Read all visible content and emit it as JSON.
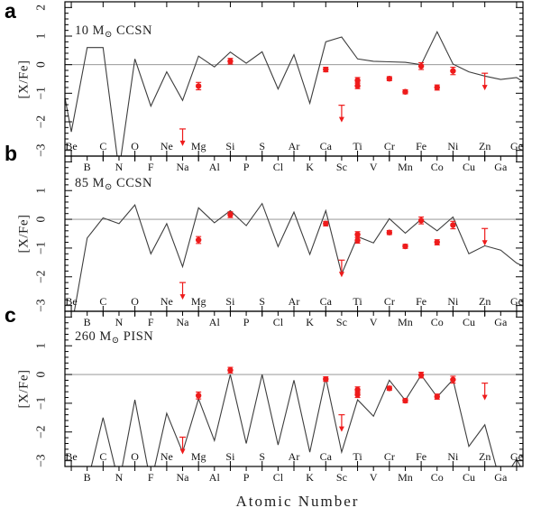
{
  "figure": {
    "xlabel": "Atomic Number",
    "ylabel": "[X/Fe]",
    "background": "#ffffff",
    "axis_color": "#000000",
    "model_line_color": "#3d3d3d",
    "zero_line_color": "#8a8a8a",
    "marker_color": "#ee1b1b"
  },
  "elements": [
    {
      "symbol": "Be",
      "z": 4
    },
    {
      "symbol": "B",
      "z": 5
    },
    {
      "symbol": "C",
      "z": 6
    },
    {
      "symbol": "N",
      "z": 7
    },
    {
      "symbol": "O",
      "z": 8
    },
    {
      "symbol": "F",
      "z": 9
    },
    {
      "symbol": "Ne",
      "z": 10
    },
    {
      "symbol": "Na",
      "z": 11
    },
    {
      "symbol": "Mg",
      "z": 12
    },
    {
      "symbol": "Al",
      "z": 13
    },
    {
      "symbol": "Si",
      "z": 14
    },
    {
      "symbol": "P",
      "z": 15
    },
    {
      "symbol": "S",
      "z": 16
    },
    {
      "symbol": "Cl",
      "z": 17
    },
    {
      "symbol": "Ar",
      "z": 18
    },
    {
      "symbol": "K",
      "z": 19
    },
    {
      "symbol": "Ca",
      "z": 20
    },
    {
      "symbol": "Sc",
      "z": 21
    },
    {
      "symbol": "Ti",
      "z": 22
    },
    {
      "symbol": "V",
      "z": 23
    },
    {
      "symbol": "Cr",
      "z": 24
    },
    {
      "symbol": "Mn",
      "z": 25
    },
    {
      "symbol": "Fe",
      "z": 26
    },
    {
      "symbol": "Co",
      "z": 27
    },
    {
      "symbol": "Ni",
      "z": 28
    },
    {
      "symbol": "Cu",
      "z": 29
    },
    {
      "symbol": "Zn",
      "z": 30
    },
    {
      "symbol": "Ga",
      "z": 31
    },
    {
      "symbol": "Ge",
      "z": 32
    }
  ],
  "chart_data": [
    {
      "type": "line",
      "panel_letter": "a",
      "title_prefix": "10 M",
      "title_sub": "⊙",
      "title_suffix": " CCSN",
      "title_text": "10 M⊙ CCSN",
      "ylabel": "[X/Fe]",
      "xlabel": "Atomic Number",
      "xlim": [
        3.6,
        32.4
      ],
      "ylim": [
        -3.2,
        2.2
      ],
      "yticks": [
        -3,
        -2,
        -1,
        0,
        1,
        2
      ],
      "ytick_labels": [
        {
          "value": 2,
          "label": "2"
        },
        {
          "value": 1,
          "label": "1"
        },
        {
          "value": 0,
          "label": "0"
        },
        {
          "value": -1,
          "label": "-1"
        },
        {
          "value": -2,
          "label": "-2"
        },
        {
          "value": -3,
          "label": "-3"
        }
      ],
      "model_line": {
        "z": [
          3.6,
          4,
          5,
          6,
          7,
          8,
          9,
          10,
          11,
          12,
          13,
          14,
          15,
          16,
          17,
          18,
          19,
          20,
          21,
          22,
          23,
          24,
          25,
          26,
          27,
          28,
          29,
          30,
          31,
          32,
          32.4
        ],
        "xfe": [
          -1.15,
          -2.35,
          0.6,
          0.6,
          -3.7,
          0.2,
          -1.45,
          -0.25,
          -1.25,
          0.3,
          -0.08,
          0.44,
          0.05,
          0.45,
          -0.85,
          0.35,
          -1.35,
          0.8,
          0.97,
          0.2,
          0.12,
          0.1,
          0.08,
          0.0,
          1.15,
          0.02,
          -0.25,
          -0.4,
          -0.52,
          -0.45,
          -0.6
        ]
      },
      "observed": [
        {
          "element": "Mg",
          "z": 12,
          "xfe": -0.75,
          "err": 0.13
        },
        {
          "element": "Si",
          "z": 14,
          "xfe": 0.12,
          "err": 0.1
        },
        {
          "element": "Ca",
          "z": 20,
          "xfe": -0.17,
          "err": 0.08
        },
        {
          "element": "Ti",
          "z": 22,
          "xfe": -0.55,
          "err": 0.1
        },
        {
          "element": "Ti",
          "z": 22,
          "xfe": -0.74,
          "err": 0.1
        },
        {
          "element": "Cr",
          "z": 24,
          "xfe": -0.49,
          "err": 0.07
        },
        {
          "element": "Mn",
          "z": 25,
          "xfe": -0.95,
          "err": 0.07
        },
        {
          "element": "Fe",
          "z": 26,
          "xfe": -0.05,
          "err": 0.12
        },
        {
          "element": "Co",
          "z": 27,
          "xfe": -0.8,
          "err": 0.09
        },
        {
          "element": "Ni",
          "z": 28,
          "xfe": -0.22,
          "err": 0.13
        }
      ],
      "upper_limits": [
        {
          "element": "Na",
          "z": 11,
          "xfe": -2.25
        },
        {
          "element": "Sc",
          "z": 21,
          "xfe": -1.42
        },
        {
          "element": "Zn",
          "z": 30,
          "xfe": -0.3
        }
      ]
    },
    {
      "type": "line",
      "panel_letter": "b",
      "title_prefix": "85 M",
      "title_sub": "⊙",
      "title_suffix": " CCSN",
      "title_text": "85 M⊙ CCSN",
      "ylabel": "[X/Fe]",
      "xlabel": "Atomic Number",
      "xlim": [
        3.6,
        32.4
      ],
      "ylim": [
        -3.2,
        2.2
      ],
      "yticks": [
        -3,
        -2,
        -1,
        0,
        1,
        2
      ],
      "ytick_labels": [
        {
          "value": 1,
          "label": "1"
        },
        {
          "value": 0,
          "label": "0"
        },
        {
          "value": -1,
          "label": "-1"
        },
        {
          "value": -2,
          "label": "-2"
        },
        {
          "value": -3,
          "label": "-3"
        }
      ],
      "model_line": {
        "z": [
          3.7,
          4,
          5,
          6,
          7,
          8,
          9,
          10,
          11,
          12,
          13,
          14,
          15,
          16,
          17,
          18,
          19,
          20,
          21,
          22,
          23,
          24,
          25,
          26,
          27,
          28,
          29,
          30,
          31,
          32,
          32.4
        ],
        "xfe": [
          -3.8,
          -3.8,
          -0.65,
          0.05,
          -0.15,
          0.5,
          -1.2,
          -0.15,
          -1.65,
          0.4,
          -0.12,
          0.3,
          -0.22,
          0.55,
          -0.95,
          0.25,
          -1.22,
          0.3,
          -1.9,
          -0.6,
          -0.82,
          0.02,
          -0.48,
          0.0,
          -0.4,
          0.08,
          -1.2,
          -0.92,
          -1.07,
          -1.52,
          -1.63
        ]
      },
      "observed": [
        {
          "element": "Mg",
          "z": 12,
          "xfe": -0.72,
          "err": 0.12
        },
        {
          "element": "Si",
          "z": 14,
          "xfe": 0.16,
          "err": 0.1
        },
        {
          "element": "Ca",
          "z": 20,
          "xfe": -0.15,
          "err": 0.08
        },
        {
          "element": "Ti",
          "z": 22,
          "xfe": -0.53,
          "err": 0.1
        },
        {
          "element": "Ti",
          "z": 22,
          "xfe": -0.73,
          "err": 0.1
        },
        {
          "element": "Cr",
          "z": 24,
          "xfe": -0.46,
          "err": 0.07
        },
        {
          "element": "Mn",
          "z": 25,
          "xfe": -0.94,
          "err": 0.07
        },
        {
          "element": "Fe",
          "z": 26,
          "xfe": -0.04,
          "err": 0.12
        },
        {
          "element": "Co",
          "z": 27,
          "xfe": -0.8,
          "err": 0.09
        },
        {
          "element": "Ni",
          "z": 28,
          "xfe": -0.2,
          "err": 0.13
        }
      ],
      "upper_limits": [
        {
          "element": "Na",
          "z": 11,
          "xfe": -2.2
        },
        {
          "element": "Sc",
          "z": 21,
          "xfe": -1.42
        },
        {
          "element": "Zn",
          "z": 30,
          "xfe": -0.32
        }
      ]
    },
    {
      "type": "line",
      "panel_letter": "c",
      "title_prefix": "260 M",
      "title_sub": "⊙",
      "title_suffix": " PISN",
      "title_text": "260 M⊙ PISN",
      "ylabel": "[X/Fe]",
      "xlabel": "Atomic Number",
      "xlim": [
        3.6,
        32.4
      ],
      "ylim": [
        -3.2,
        2.2
      ],
      "yticks": [
        -3,
        -2,
        -1,
        0,
        1,
        2
      ],
      "ytick_labels": [
        {
          "value": 1,
          "label": "1"
        },
        {
          "value": 0,
          "label": "0"
        },
        {
          "value": -1,
          "label": "-1"
        },
        {
          "value": -2,
          "label": "-2"
        },
        {
          "value": -3,
          "label": "-3"
        }
      ],
      "model_line": {
        "z": [
          3.7,
          4,
          5,
          6,
          7,
          8,
          9,
          10,
          11,
          12,
          13,
          14,
          15,
          16,
          17,
          18,
          19,
          20,
          21,
          22,
          23,
          24,
          25,
          26,
          27,
          28,
          29,
          30,
          31,
          32,
          32.4
        ],
        "xfe": [
          -3.8,
          -3.8,
          -3.8,
          -1.5,
          -3.8,
          -0.88,
          -3.8,
          -1.35,
          -2.7,
          -0.85,
          -2.3,
          0.0,
          -2.4,
          0.0,
          -2.45,
          -0.2,
          -2.7,
          -0.12,
          -2.7,
          -0.88,
          -1.45,
          -0.2,
          -0.9,
          -0.02,
          -0.78,
          -0.18,
          -2.5,
          -1.75,
          -3.8,
          -2.95,
          -3.35
        ]
      },
      "observed": [
        {
          "element": "Mg",
          "z": 12,
          "xfe": -0.73,
          "err": 0.12
        },
        {
          "element": "Si",
          "z": 14,
          "xfe": 0.15,
          "err": 0.1
        },
        {
          "element": "Ca",
          "z": 20,
          "xfe": -0.16,
          "err": 0.08
        },
        {
          "element": "Ti",
          "z": 22,
          "xfe": -0.53,
          "err": 0.1
        },
        {
          "element": "Ti",
          "z": 22,
          "xfe": -0.7,
          "err": 0.1
        },
        {
          "element": "Cr",
          "z": 24,
          "xfe": -0.48,
          "err": 0.07
        },
        {
          "element": "Mn",
          "z": 25,
          "xfe": -0.91,
          "err": 0.07
        },
        {
          "element": "Fe",
          "z": 26,
          "xfe": -0.02,
          "err": 0.1
        },
        {
          "element": "Co",
          "z": 27,
          "xfe": -0.77,
          "err": 0.09
        },
        {
          "element": "Ni",
          "z": 28,
          "xfe": -0.18,
          "err": 0.12
        }
      ],
      "upper_limits": [
        {
          "element": "Na",
          "z": 11,
          "xfe": -2.18
        },
        {
          "element": "Sc",
          "z": 21,
          "xfe": -1.4
        },
        {
          "element": "Zn",
          "z": 30,
          "xfe": -0.3
        }
      ]
    }
  ]
}
